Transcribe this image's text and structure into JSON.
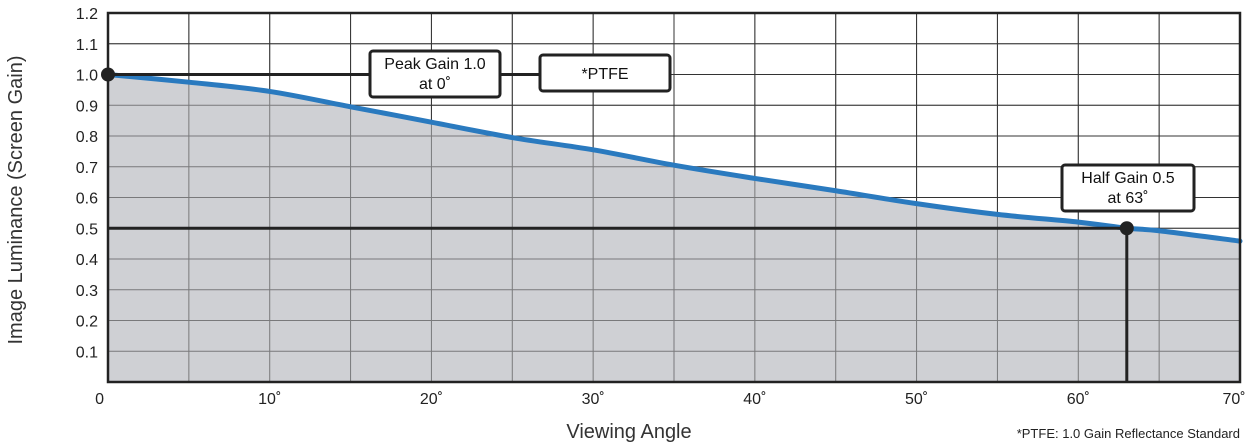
{
  "chart_data": {
    "type": "area",
    "title": "",
    "xlabel": "Viewing Angle",
    "ylabel": "Image Luminance (Screen Gain)",
    "xlim": [
      0,
      70
    ],
    "ylim": [
      0,
      1.2
    ],
    "grid": true,
    "x_major_ticks": [
      0,
      10,
      20,
      30,
      40,
      50,
      60,
      70
    ],
    "x_tick_labels": [
      "0",
      "10˚",
      "20˚",
      "30˚",
      "40˚",
      "50˚",
      "60˚",
      "70˚"
    ],
    "x_minor_step": 5,
    "y_ticks": [
      0.1,
      0.2,
      0.3,
      0.4,
      0.5,
      0.6,
      0.7,
      0.8,
      0.9,
      1.0,
      1.1,
      1.2
    ],
    "y_tick_labels": [
      "0.1",
      "0.2",
      "0.3",
      "0.4",
      "0.5",
      "0.6",
      "0.7",
      "0.8",
      "0.9",
      "1.0",
      "1.1",
      "1.2"
    ],
    "series": [
      {
        "color": "#2a7abf",
        "fill": "#cfd0d4",
        "points": [
          [
            0,
            1.0
          ],
          [
            5,
            0.975
          ],
          [
            10,
            0.945
          ],
          [
            15,
            0.895
          ],
          [
            20,
            0.845
          ],
          [
            25,
            0.795
          ],
          [
            30,
            0.755
          ],
          [
            35,
            0.705
          ],
          [
            40,
            0.662
          ],
          [
            45,
            0.622
          ],
          [
            50,
            0.58
          ],
          [
            55,
            0.545
          ],
          [
            60,
            0.52
          ],
          [
            63,
            0.5
          ],
          [
            65,
            0.492
          ],
          [
            70,
            0.458
          ]
        ]
      }
    ],
    "reference_lines": {
      "peak_y": 1.0,
      "half_y": 0.5,
      "half_x": 63
    },
    "markers": [
      {
        "x": 0,
        "y": 1.0
      },
      {
        "x": 63,
        "y": 0.5
      }
    ],
    "annotations": {
      "peak_line1": "Peak Gain 1.0",
      "peak_line2": "at 0˚",
      "ptfe": "*PTFE",
      "half_line1": "Half Gain 0.5",
      "half_line2": "at 63˚"
    },
    "footnote": "*PTFE:  1.0 Gain Reflectance Standard",
    "colors": {
      "grid": "#333333",
      "frame": "#222222",
      "ref_line": "#222222"
    }
  }
}
